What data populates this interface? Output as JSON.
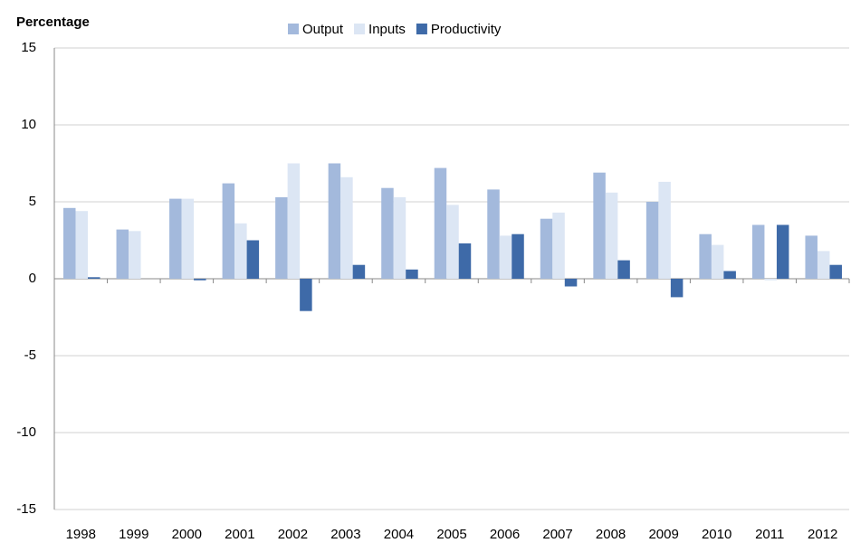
{
  "chart_data": {
    "type": "bar",
    "y_label": "Percentage",
    "categories": [
      "1998",
      "1999",
      "2000",
      "2001",
      "2002",
      "2003",
      "2004",
      "2005",
      "2006",
      "2007",
      "2008",
      "2009",
      "2010",
      "2011",
      "2012"
    ],
    "series": [
      {
        "name": "Output",
        "color": "#a3b9dc",
        "values": [
          4.6,
          3.2,
          5.2,
          6.2,
          5.3,
          7.5,
          5.9,
          7.2,
          5.8,
          3.9,
          6.9,
          5.0,
          2.9,
          3.5,
          2.8
        ]
      },
      {
        "name": "Inputs",
        "color": "#dce6f4",
        "values": [
          4.4,
          3.1,
          5.2,
          3.6,
          7.5,
          6.6,
          5.3,
          4.8,
          2.8,
          4.3,
          5.6,
          6.3,
          2.2,
          -0.1,
          1.8
        ]
      },
      {
        "name": "Productivity",
        "color": "#3e6aa8",
        "values": [
          0.1,
          0,
          -0.1,
          2.5,
          -2.1,
          0.9,
          0.6,
          2.3,
          2.9,
          -0.5,
          1.2,
          -1.2,
          0.5,
          3.5,
          0.9
        ]
      }
    ],
    "ylim": [
      -15,
      15
    ],
    "yticks": [
      15,
      10,
      5,
      0,
      -5,
      -10,
      -15
    ],
    "grid": true,
    "legend": "top"
  }
}
